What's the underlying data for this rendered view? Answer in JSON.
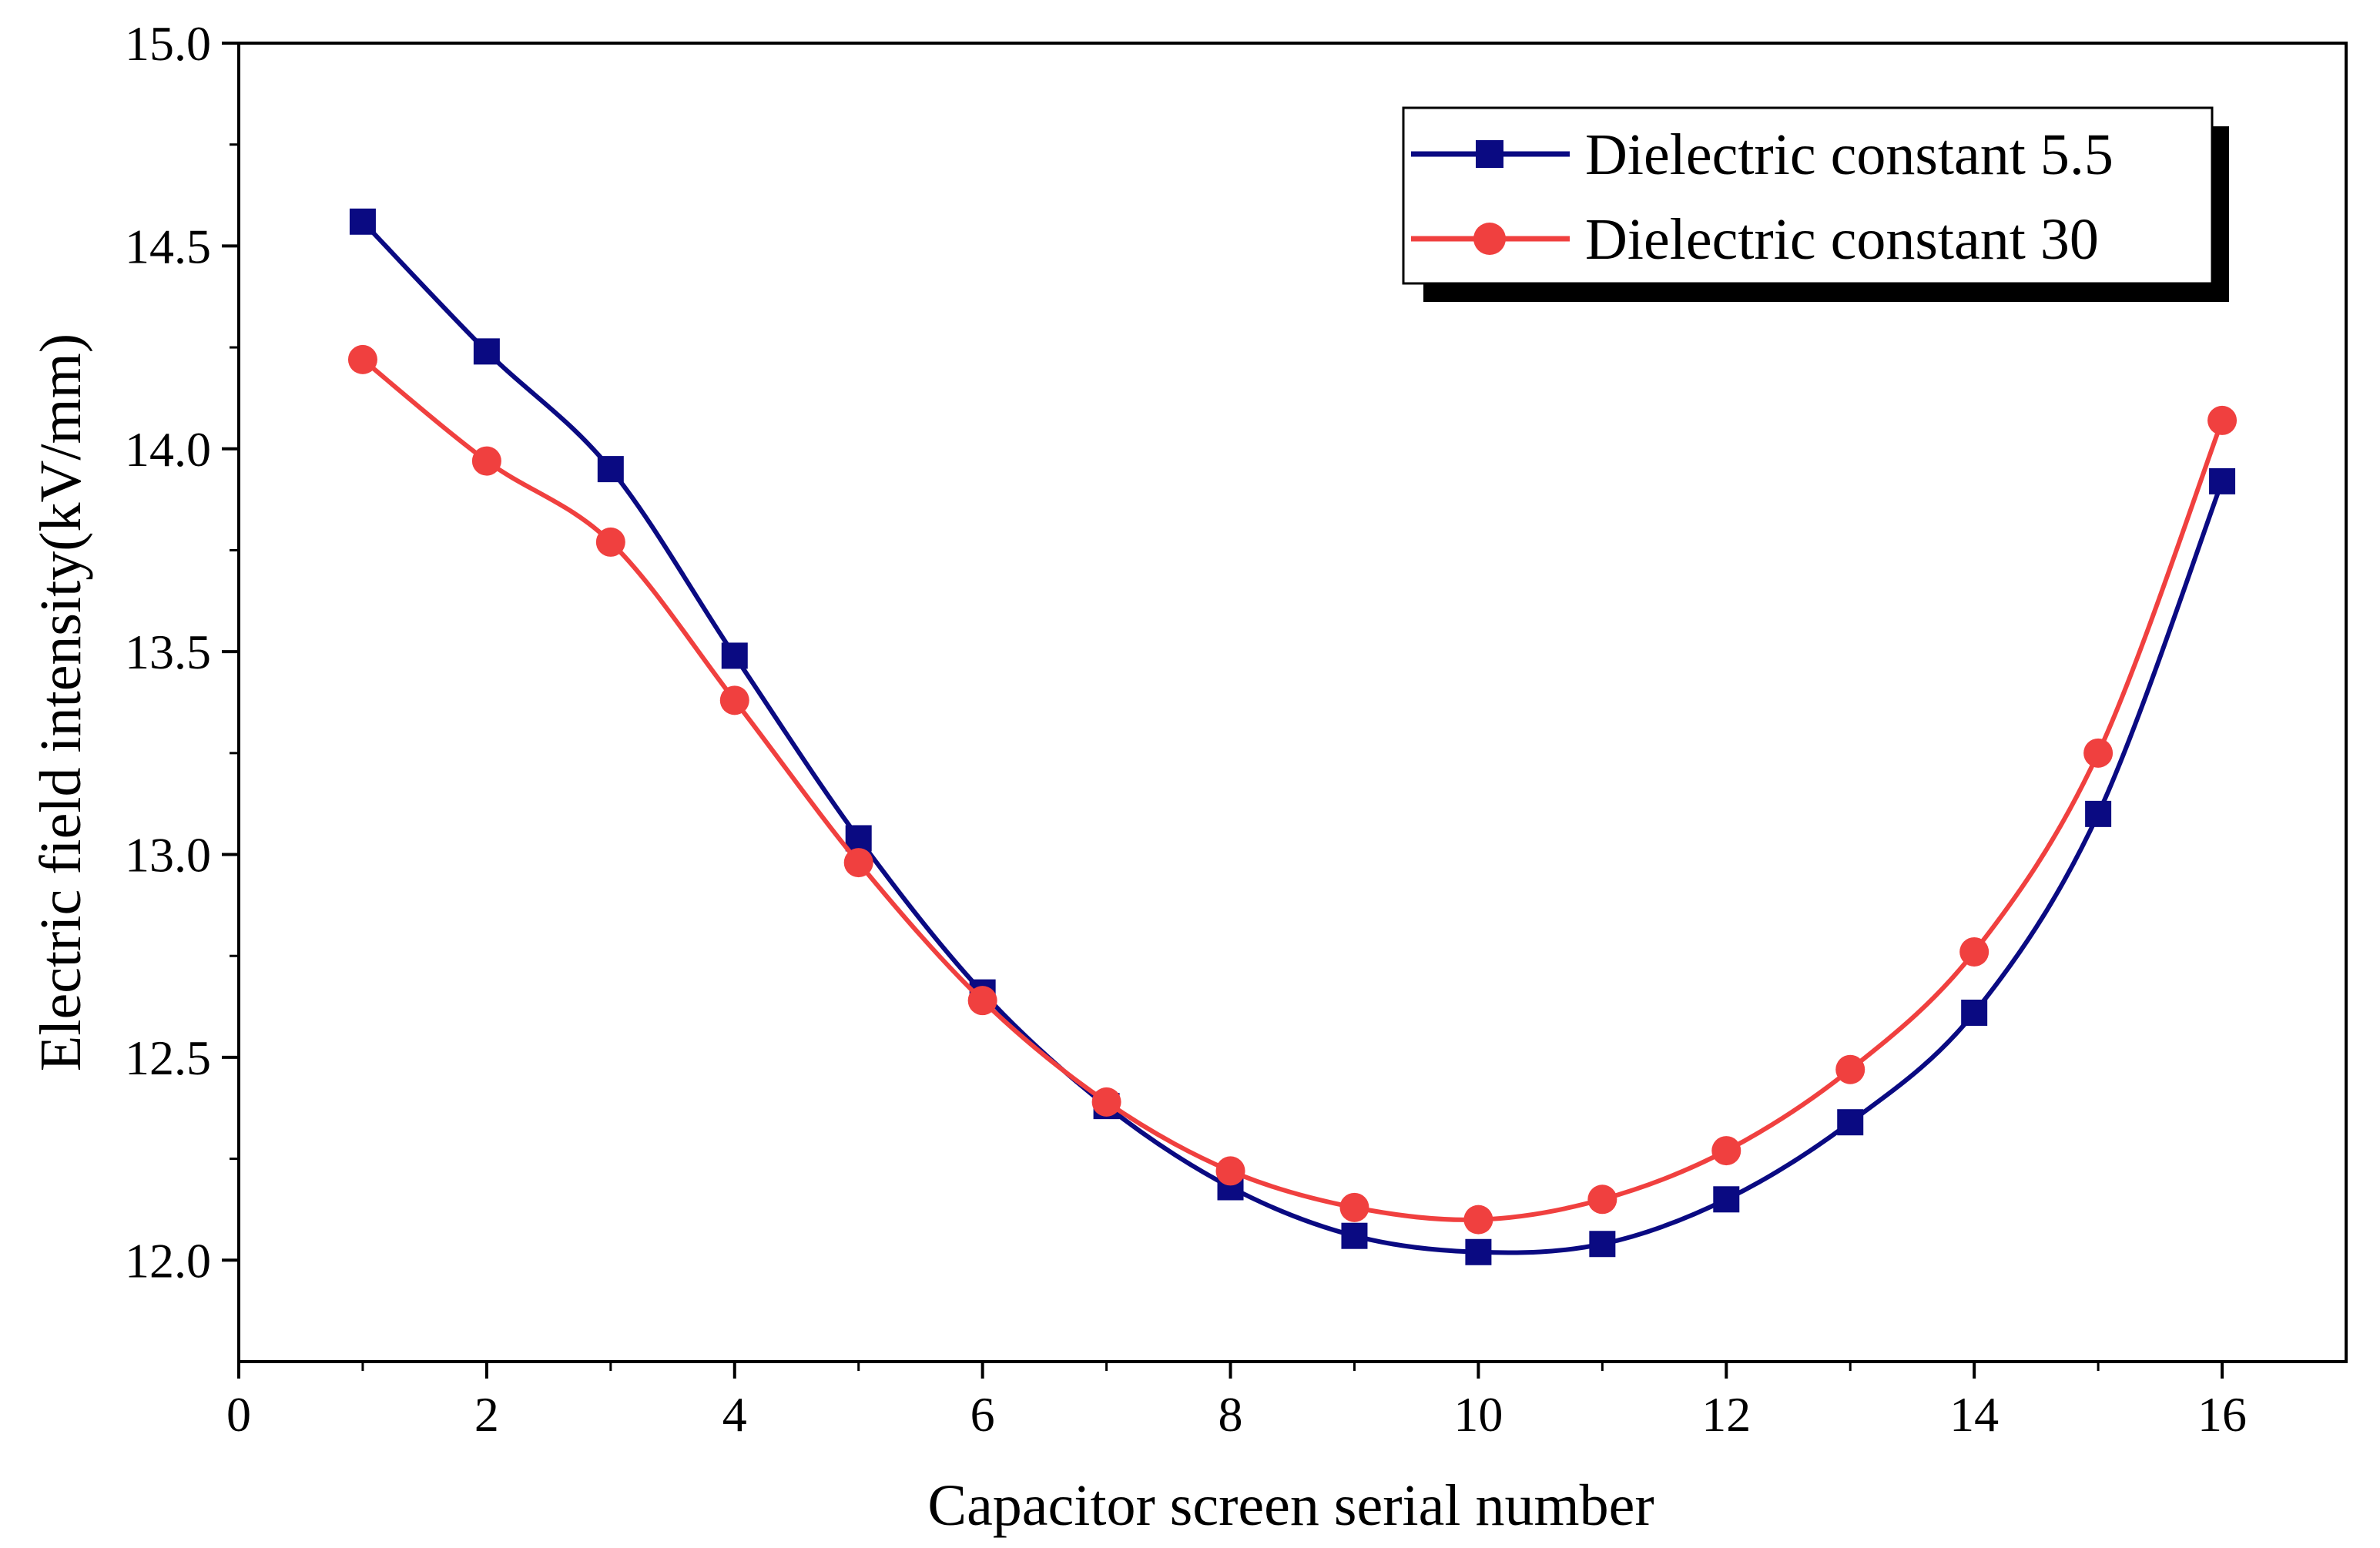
{
  "chart_data": {
    "type": "line",
    "title": "",
    "xlabel": "Capacitor screen serial number",
    "ylabel": "Electric field intensity(kV/mm)",
    "xlim": [
      0,
      17
    ],
    "ylim": [
      11.75,
      15.0
    ],
    "xticks": [
      0,
      2,
      4,
      6,
      8,
      10,
      12,
      14,
      16
    ],
    "yticks": [
      12.0,
      12.5,
      13.0,
      13.5,
      14.0,
      14.5,
      15.0
    ],
    "xtick_labels": [
      "0",
      "2",
      "4",
      "6",
      "8",
      "10",
      "12",
      "14",
      "16"
    ],
    "ytick_labels": [
      "12.0",
      "12.5",
      "13.0",
      "13.5",
      "14.0",
      "14.5",
      "15.0"
    ],
    "x": [
      1,
      2,
      3,
      4,
      5,
      6,
      7,
      8,
      9,
      10,
      11,
      12,
      13,
      14,
      15,
      16
    ],
    "series": [
      {
        "name": "Dielectric constant 5.5",
        "color": "#0a0a82",
        "marker": "square",
        "values": [
          14.56,
          14.24,
          13.95,
          13.49,
          13.04,
          12.66,
          12.38,
          12.18,
          12.06,
          12.02,
          12.04,
          12.15,
          12.34,
          12.61,
          13.1,
          13.92
        ]
      },
      {
        "name": "Dielectric constant 30",
        "color": "#f0403f",
        "marker": "circle",
        "values": [
          14.22,
          13.97,
          13.77,
          13.38,
          12.98,
          12.64,
          12.39,
          12.22,
          12.13,
          12.1,
          12.15,
          12.27,
          12.47,
          12.76,
          13.25,
          14.07
        ]
      }
    ],
    "legend": {
      "position": "top-right"
    },
    "grid": false
  }
}
